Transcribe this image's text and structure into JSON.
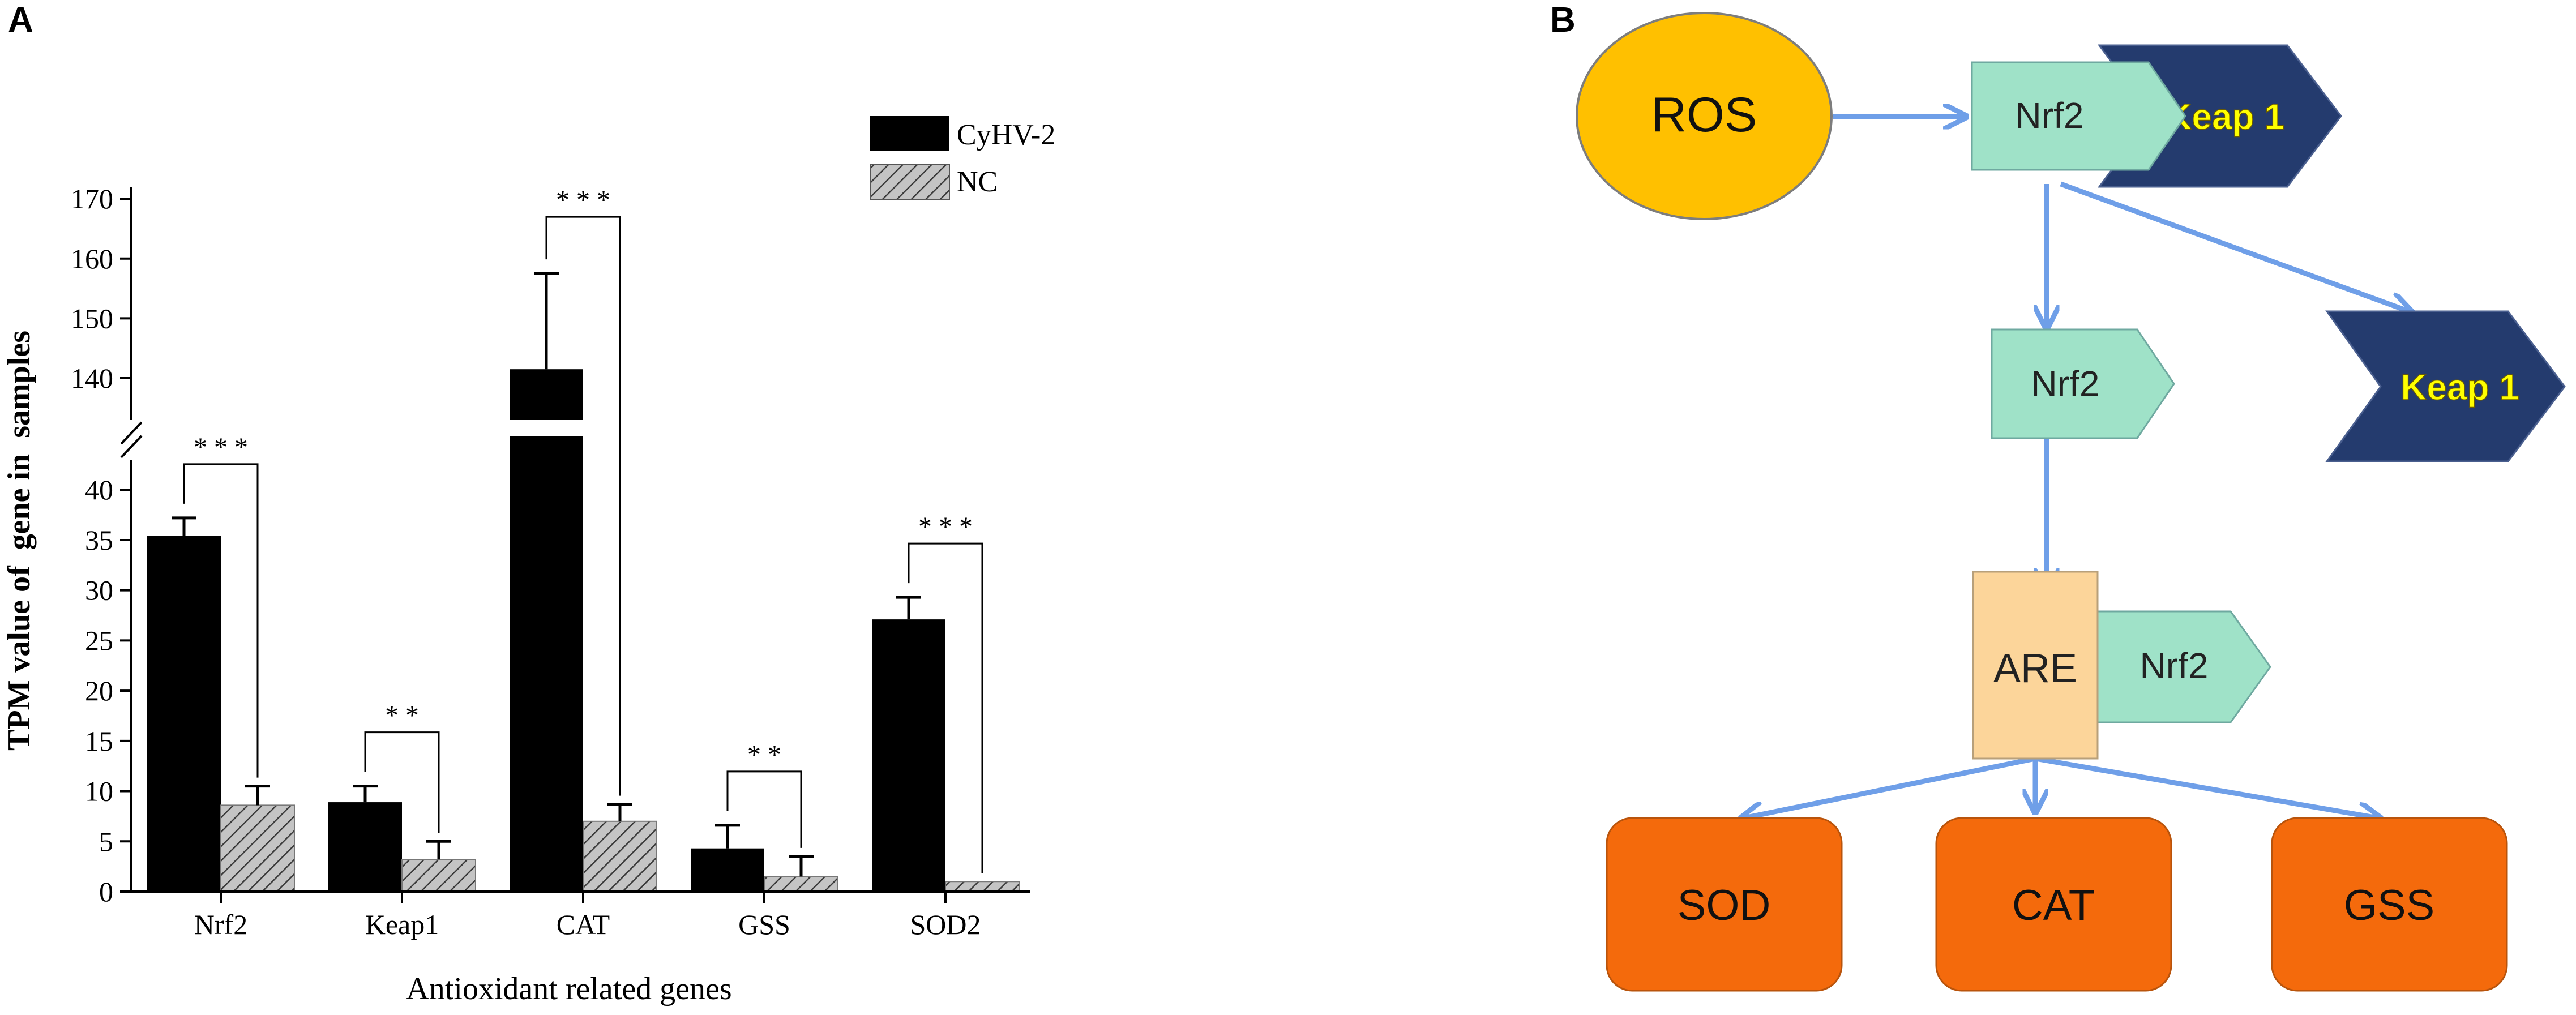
{
  "panel_a": {
    "label": "A"
  },
  "panel_b": {
    "label": "B"
  },
  "chart_data": {
    "type": "bar",
    "xlabel": "Antioxidant related genes",
    "ylabel": "TPM value of  gene in  samples",
    "categories": [
      "Nrf2",
      "Keap1",
      "CAT",
      "GSS",
      "SOD2"
    ],
    "series": [
      {
        "name": "CyHV-2",
        "values": [
          35.4,
          8.9,
          141.5,
          4.3,
          27.1
        ],
        "errors": [
          1.8,
          1.6,
          16.0,
          2.3,
          2.2
        ],
        "color": "#000000",
        "pattern": "solid"
      },
      {
        "name": "NC",
        "values": [
          8.6,
          3.2,
          7.0,
          1.5,
          1.0
        ],
        "errors": [
          1.9,
          1.8,
          1.7,
          2.0,
          0.0
        ],
        "color": "#9a9a9a",
        "pattern": "hatched"
      }
    ],
    "significance": [
      "* * *",
      "* *",
      "* * *",
      "* *",
      "* * *"
    ],
    "axis_break": {
      "lower_range": [
        0,
        43
      ],
      "upper_range": [
        133,
        172
      ]
    },
    "lower_ticks": [
      0,
      5,
      10,
      15,
      20,
      25,
      30,
      35,
      40
    ],
    "upper_ticks": [
      140,
      150,
      160,
      170
    ],
    "legend_position": "top-right",
    "grid": false
  },
  "diagram": {
    "nodes": {
      "ros": "ROS",
      "nrf2_top": "Nrf2",
      "keap1_top": "Keap 1",
      "nrf2_mid": "Nrf2",
      "keap1_mid": "Keap 1",
      "are": "ARE",
      "nrf2_are": "Nrf2",
      "sod": "SOD",
      "cat": "CAT",
      "gss": "GSS"
    },
    "colors": {
      "ros": "#ffc000",
      "nrf2": "#9fe2c8",
      "keap1": "#243b6e",
      "keap1_text": "#ffff00",
      "are": "#fcd59a",
      "enzyme": "#f46a0c",
      "arrow": "#6f9fe8"
    }
  }
}
